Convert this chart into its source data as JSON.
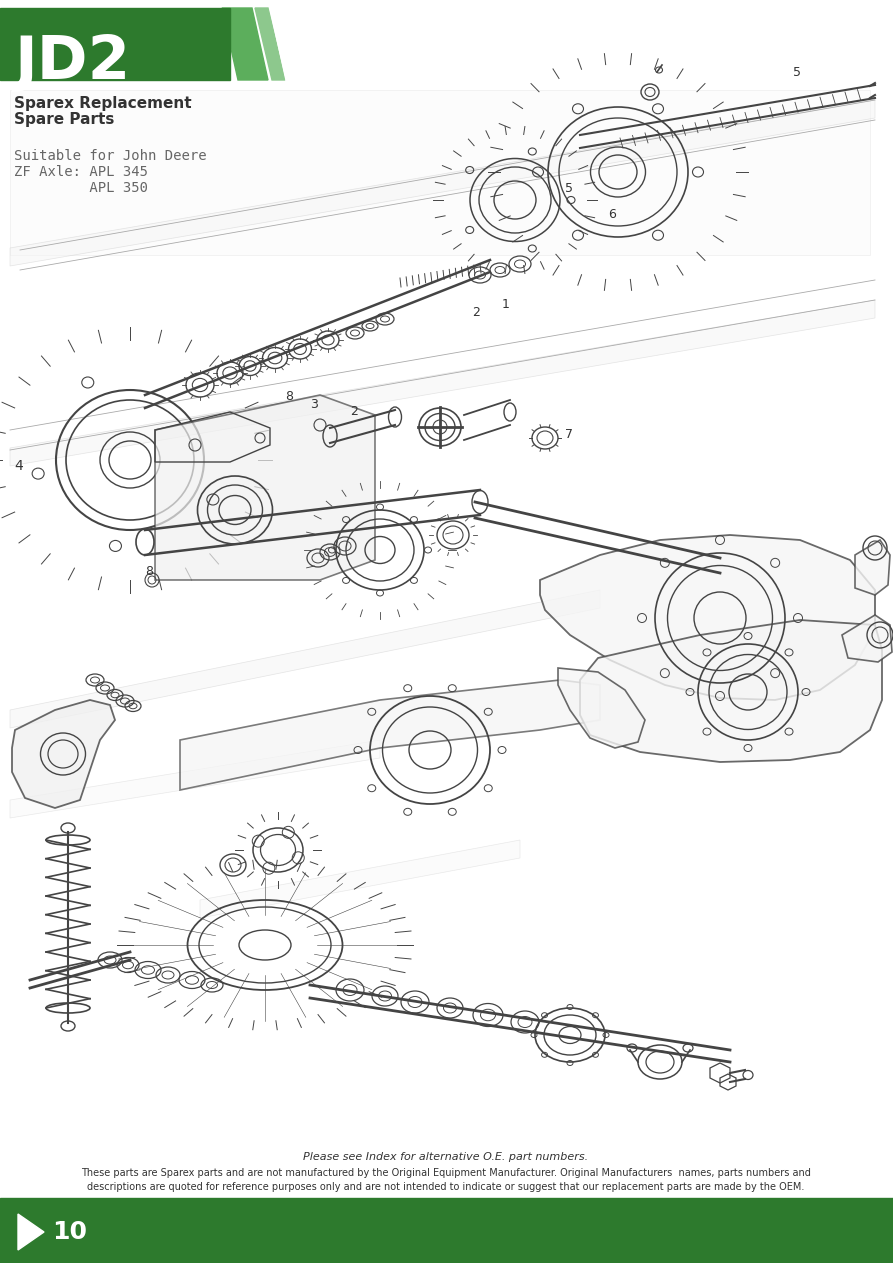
{
  "bg_color": "#ffffff",
  "page_width": 8.93,
  "page_height": 12.63,
  "header_green": "#2d7a2d",
  "title_text": "JD2",
  "subtitle1": "Sparex Replacement",
  "subtitle2": "Spare Parts",
  "suitable_line1": "Suitable for John Deere",
  "suitable_line2": "ZF Axle: APL 345",
  "suitable_line3": "         APL 350",
  "footer_line1": "Please see Index for alternative O.E. part numbers.",
  "footer_line2": "These parts are Sparex parts and are not manufactured by the Original Equipment Manufacturer. Original Manufacturers  names, parts numbers and",
  "footer_line3": "descriptions are quoted for reference purposes only and are not intended to indicate or suggest that our replacement parts are made by the OEM.",
  "page_number": "10",
  "dark_gray": "#333333",
  "medium_gray": "#666666",
  "line_color": "#444444",
  "footer_bg": "#2d7a2d",
  "stripe1": "#3d8a3d",
  "stripe2": "#f0f0f0",
  "stripe3": "#5cae5c"
}
